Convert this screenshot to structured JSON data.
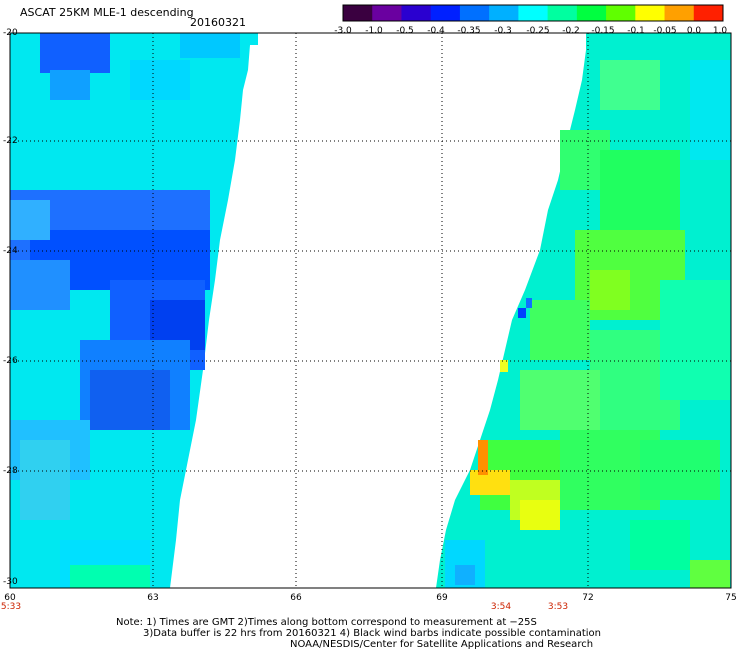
{
  "title": "ASCAT 25KM MLE-1 descending",
  "date": "20160321",
  "colorbar": {
    "labels": [
      "-3.0",
      "-1.0",
      "-0.5",
      "-0.4",
      "-0.35",
      "-0.3",
      "-0.25",
      "-0.2",
      "-0.15",
      "-0.1",
      "-0.05",
      "0.0",
      "1.0"
    ],
    "colors": [
      "#3a0040",
      "#6a00a0",
      "#2a00d0",
      "#0020ff",
      "#0070ff",
      "#00b0ff",
      "#00ffff",
      "#00ffa0",
      "#00ff40",
      "#60ff00",
      "#ffff00",
      "#ffa000",
      "#ff2000"
    ]
  },
  "axes": {
    "lat_labels": [
      "-20",
      "-22",
      "-24",
      "-26",
      "-28",
      "-30"
    ],
    "lon_labels": [
      "60",
      "63",
      "66",
      "69",
      "72",
      "75"
    ],
    "lat_range": [
      -30,
      -20
    ],
    "lon_range": [
      60,
      75
    ]
  },
  "time_labels": [
    "5:33",
    "3:54",
    "3:53"
  ],
  "notes": {
    "line1": "Note: 1) Times are GMT 2)Times along bottom correspond to measurement at −25S",
    "line2": "3)Data buffer is 22 hrs from 20160321 4) Black wind barbs indicate possible contamination",
    "line3": "NOAA/NESDIS/Center for Satellite Applications and Research"
  }
}
